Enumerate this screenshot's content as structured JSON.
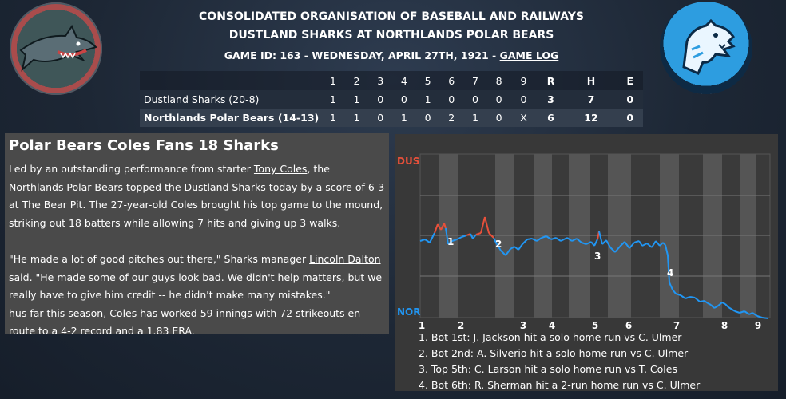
{
  "header": {
    "title1": "CONSOLIDATED ORGANISATION OF BASEBALL AND RAILWAYS",
    "title2": "DUSTLAND SHARKS AT NORTHLANDS POLAR BEARS",
    "game_line_prefix": "GAME ID: 163 - WEDNESDAY, APRIL 27TH, 1921 - ",
    "game_log_link": "GAME LOG"
  },
  "linescore": {
    "headers": [
      "1",
      "2",
      "3",
      "4",
      "5",
      "6",
      "7",
      "8",
      "9",
      "R",
      "H",
      "E"
    ],
    "teams": [
      {
        "name": "Dustland Sharks (20-8)",
        "innings": [
          "1",
          "1",
          "0",
          "0",
          "1",
          "0",
          "0",
          "0",
          "0"
        ],
        "r": "3",
        "h": "7",
        "e": "0"
      },
      {
        "name": "Northlands Polar Bears (14-13)",
        "innings": [
          "1",
          "1",
          "0",
          "1",
          "0",
          "2",
          "1",
          "0",
          "X"
        ],
        "r": "6",
        "h": "12",
        "e": "0"
      }
    ]
  },
  "story": {
    "headline": "Polar Bears Coles Fans 18 Sharks",
    "p1": [
      {
        "t": "Led by an outstanding performance from starter "
      },
      {
        "t": "Tony Coles",
        "link": true
      },
      {
        "t": ", the "
      },
      {
        "t": "Northlands Polar Bears",
        "link": true
      },
      {
        "t": " topped the "
      },
      {
        "t": "Dustland Sharks",
        "link": true
      },
      {
        "t": " today by a score of 6-3 at The Bear Pit. The 27-year-old Coles brought his top game to the mound, striking out 18 batters while allowing 7 hits and giving up 3 walks."
      }
    ],
    "p2": [
      {
        "t": "\"He made a lot of good pitches out there,\" Sharks manager "
      },
      {
        "t": "Lincoln Dalton",
        "link": true
      },
      {
        "t": " said. \"He made some of our guys look bad. We didn't help matters, but we really have to give him credit -- he didn't make many mistakes.\""
      }
    ],
    "p3": [
      {
        "t": "hus far this season, "
      },
      {
        "t": "Coles",
        "link": true
      },
      {
        "t": " has worked 59 innings with 72 strikeouts en route to a 4-2 record and a 1.83 ERA."
      }
    ]
  },
  "win_probability": {
    "away_label": "DUS",
    "home_label": "NOR",
    "away_color": "#e8503a",
    "home_color": "#2196f3",
    "innings": [
      "1",
      "2",
      "3",
      "4",
      "5",
      "6",
      "7",
      "8",
      "9"
    ],
    "markers": [
      "1",
      "2",
      "3",
      "4"
    ],
    "plays": [
      "1. Bot 1st: J. Jackson hit a solo home run vs C. Ulmer",
      "2. Bot 2nd: A. Silverio hit a solo home run vs C. Ulmer",
      "3. Top 5th: C. Larson hit a solo home run vs T. Coles",
      "4. Bot 6th: R. Sherman hit a 2-run home run vs C. Ulmer"
    ]
  }
}
